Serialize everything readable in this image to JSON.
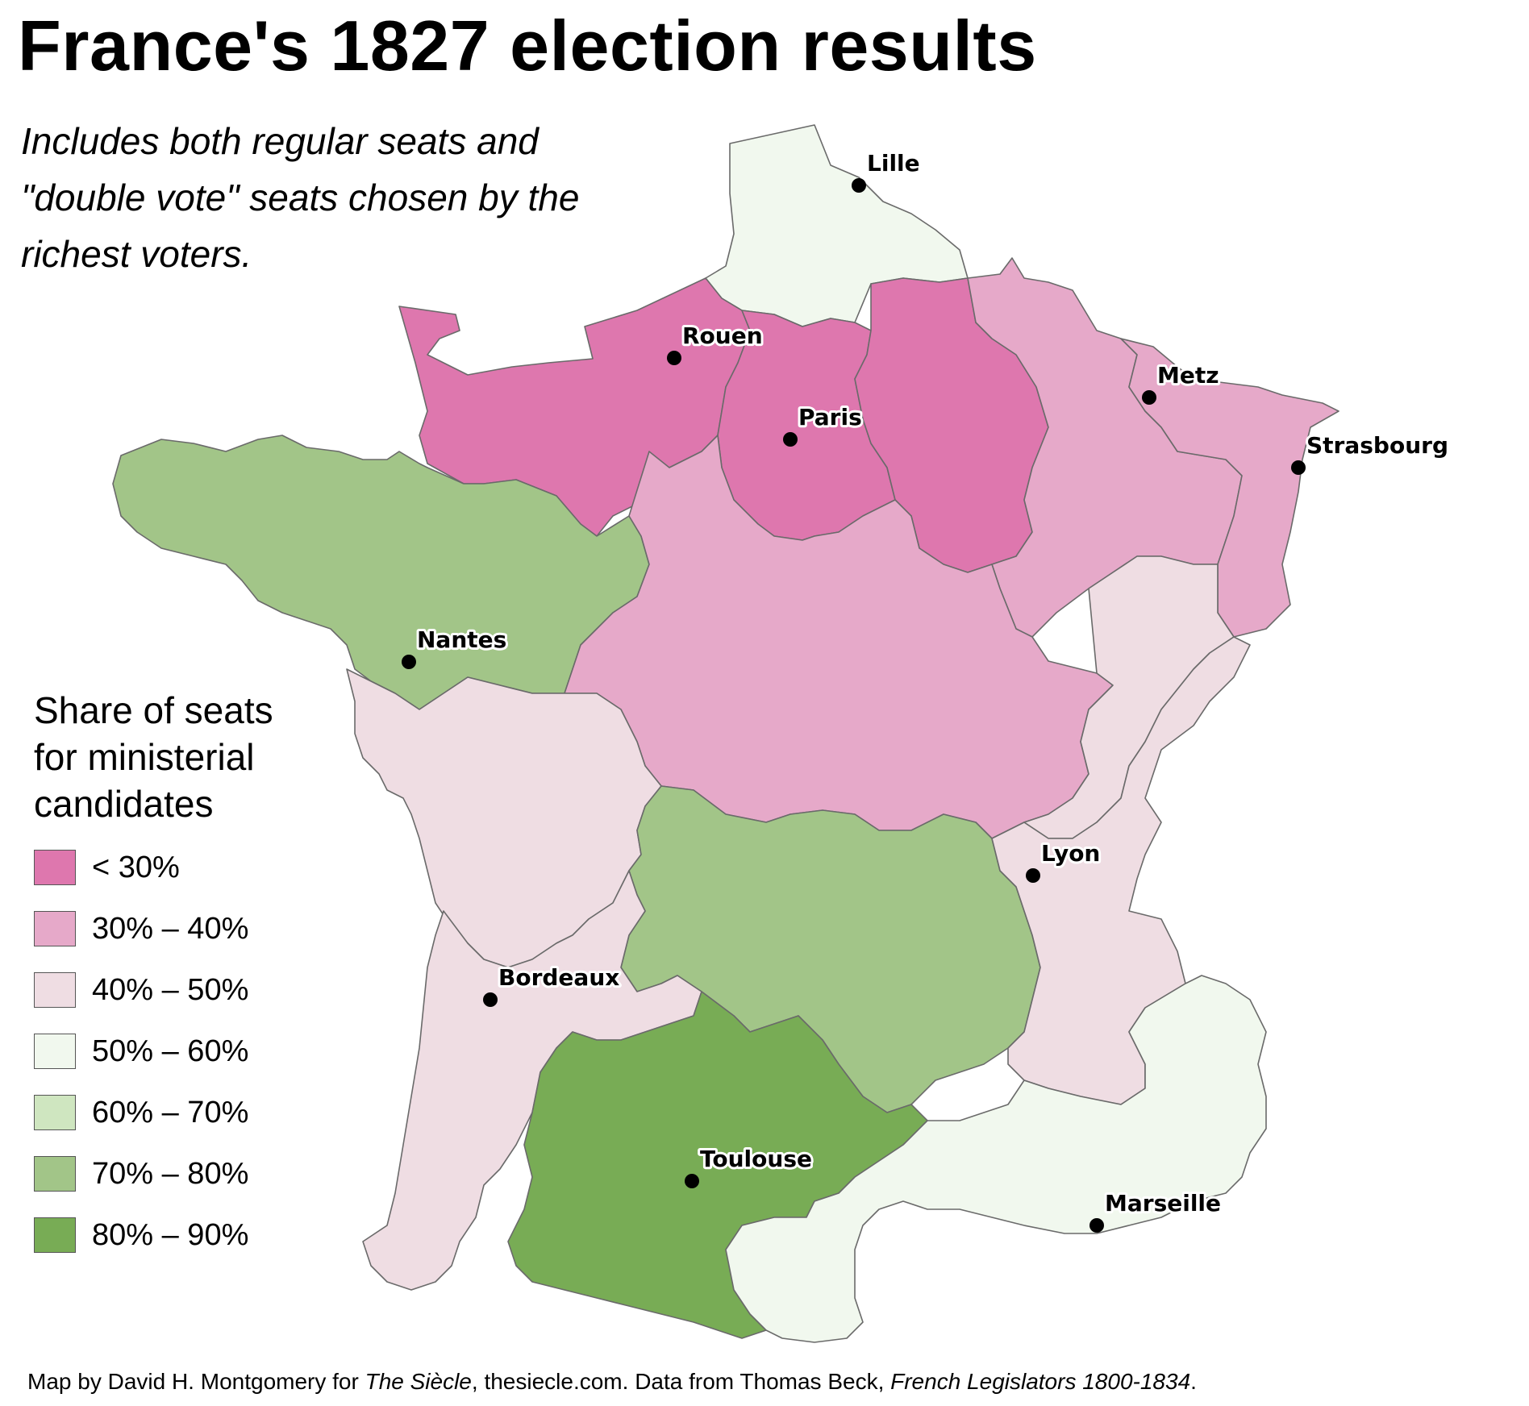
{
  "title": "France's 1827 election results",
  "subtitle": "Includes both regular seats and \"double vote\" seats chosen by the richest voters.",
  "legend": {
    "title": "Share of seats for ministerial candidates",
    "items": [
      {
        "label": "< 30%",
        "color": "#de77ae"
      },
      {
        "label": "30% – 40%",
        "color": "#e6a9c9"
      },
      {
        "label": "40% – 50%",
        "color": "#efdde3"
      },
      {
        "label": "50% – 60%",
        "color": "#f1f8ee"
      },
      {
        "label": "60% – 70%",
        "color": "#cfe6c0"
      },
      {
        "label": "70% – 80%",
        "color": "#a2c588"
      },
      {
        "label": "80% – 90%",
        "color": "#78ac55"
      }
    ]
  },
  "regions": [
    {
      "id": "north",
      "bin": "50% – 60%",
      "color": "#f1f8ee"
    },
    {
      "id": "normandy",
      "bin": "< 30%",
      "color": "#de77ae"
    },
    {
      "id": "paris",
      "bin": "< 30%",
      "color": "#de77ae"
    },
    {
      "id": "champagne",
      "bin": "< 30%",
      "color": "#de77ae"
    },
    {
      "id": "lorraine",
      "bin": "30% – 40%",
      "color": "#e6a9c9"
    },
    {
      "id": "alsace",
      "bin": "30% – 40%",
      "color": "#e6a9c9"
    },
    {
      "id": "brittany",
      "bin": "70% – 80%",
      "color": "#a2c588"
    },
    {
      "id": "centre",
      "bin": "30% – 40%",
      "color": "#e6a9c9"
    },
    {
      "id": "franche-comte",
      "bin": "40% – 50%",
      "color": "#efdde3"
    },
    {
      "id": "west",
      "bin": "40% – 50%",
      "color": "#efdde3"
    },
    {
      "id": "auvergne",
      "bin": "70% – 80%",
      "color": "#a2c588"
    },
    {
      "id": "rhone",
      "bin": "40% – 50%",
      "color": "#efdde3"
    },
    {
      "id": "aquitaine",
      "bin": "40% – 50%",
      "color": "#efdde3"
    },
    {
      "id": "toulouse",
      "bin": "80% – 90%",
      "color": "#78ac55"
    },
    {
      "id": "provence-languedoc",
      "bin": "50% – 60%",
      "color": "#f1f8ee"
    }
  ],
  "cities": [
    {
      "name": "Lille"
    },
    {
      "name": "Rouen"
    },
    {
      "name": "Paris"
    },
    {
      "name": "Metz"
    },
    {
      "name": "Strasbourg"
    },
    {
      "name": "Nantes"
    },
    {
      "name": "Lyon"
    },
    {
      "name": "Bordeaux"
    },
    {
      "name": "Toulouse"
    },
    {
      "name": "Marseille"
    }
  ],
  "footer": {
    "prefix": "Map by David H. Montgomery for ",
    "publication": "The Siècle",
    "middle": ", thesiecle.com. Data from Thomas Beck, ",
    "source_title": "French Legislators 1800-1834",
    "suffix": "."
  }
}
